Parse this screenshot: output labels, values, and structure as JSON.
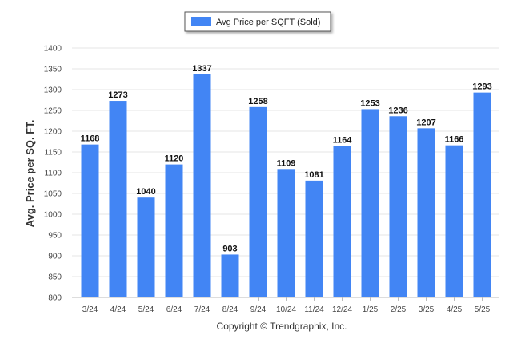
{
  "chart_data": {
    "type": "bar",
    "categories": [
      "3/24",
      "4/24",
      "5/24",
      "6/24",
      "7/24",
      "8/24",
      "9/24",
      "10/24",
      "11/24",
      "12/24",
      "1/25",
      "2/25",
      "3/25",
      "4/25",
      "5/25"
    ],
    "series": [
      {
        "name": "Avg Price per SQFT (Sold)",
        "values": [
          1168,
          1273,
          1040,
          1120,
          1337,
          903,
          1258,
          1109,
          1081,
          1164,
          1253,
          1236,
          1207,
          1166,
          1293
        ],
        "color": "#4285F4"
      }
    ],
    "ylabel": "Avg. Price per SQ. FT.",
    "xlabel": "",
    "ylim": [
      800,
      1400
    ],
    "yticks": [
      800,
      850,
      900,
      950,
      1000,
      1050,
      1100,
      1150,
      1200,
      1250,
      1300,
      1350,
      1400
    ],
    "grid": true,
    "legend_position": "top-center",
    "footer": "Copyright © Trendgraphix, Inc."
  }
}
